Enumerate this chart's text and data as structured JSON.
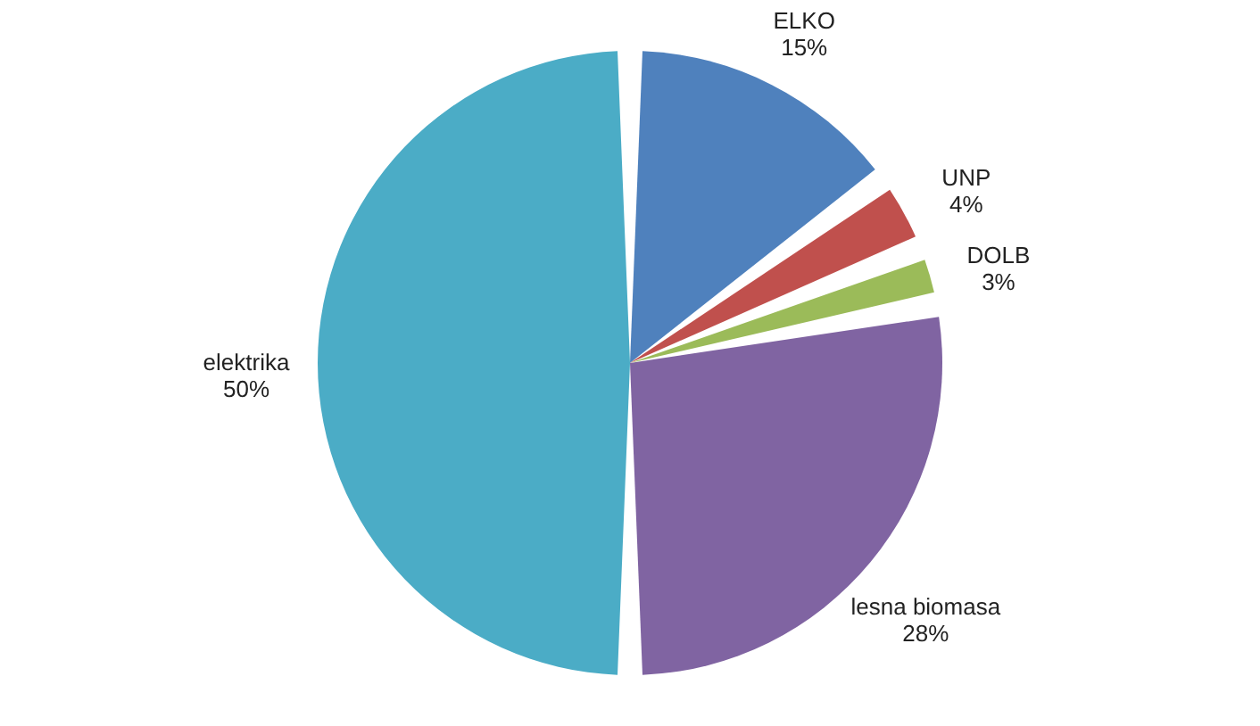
{
  "chart_data": {
    "type": "pie",
    "categories": [
      "ELKO",
      "UNP",
      "DOLB",
      "lesna biomasa",
      "elektrika"
    ],
    "values": [
      15,
      4,
      3,
      28,
      50
    ],
    "value_labels": [
      "15%",
      "4%",
      "3%",
      "28%",
      "50%"
    ],
    "colors": [
      "#4f81bd",
      "#c0504d",
      "#9bbb59",
      "#8064a2",
      "#4bacc6"
    ],
    "legend": false
  }
}
